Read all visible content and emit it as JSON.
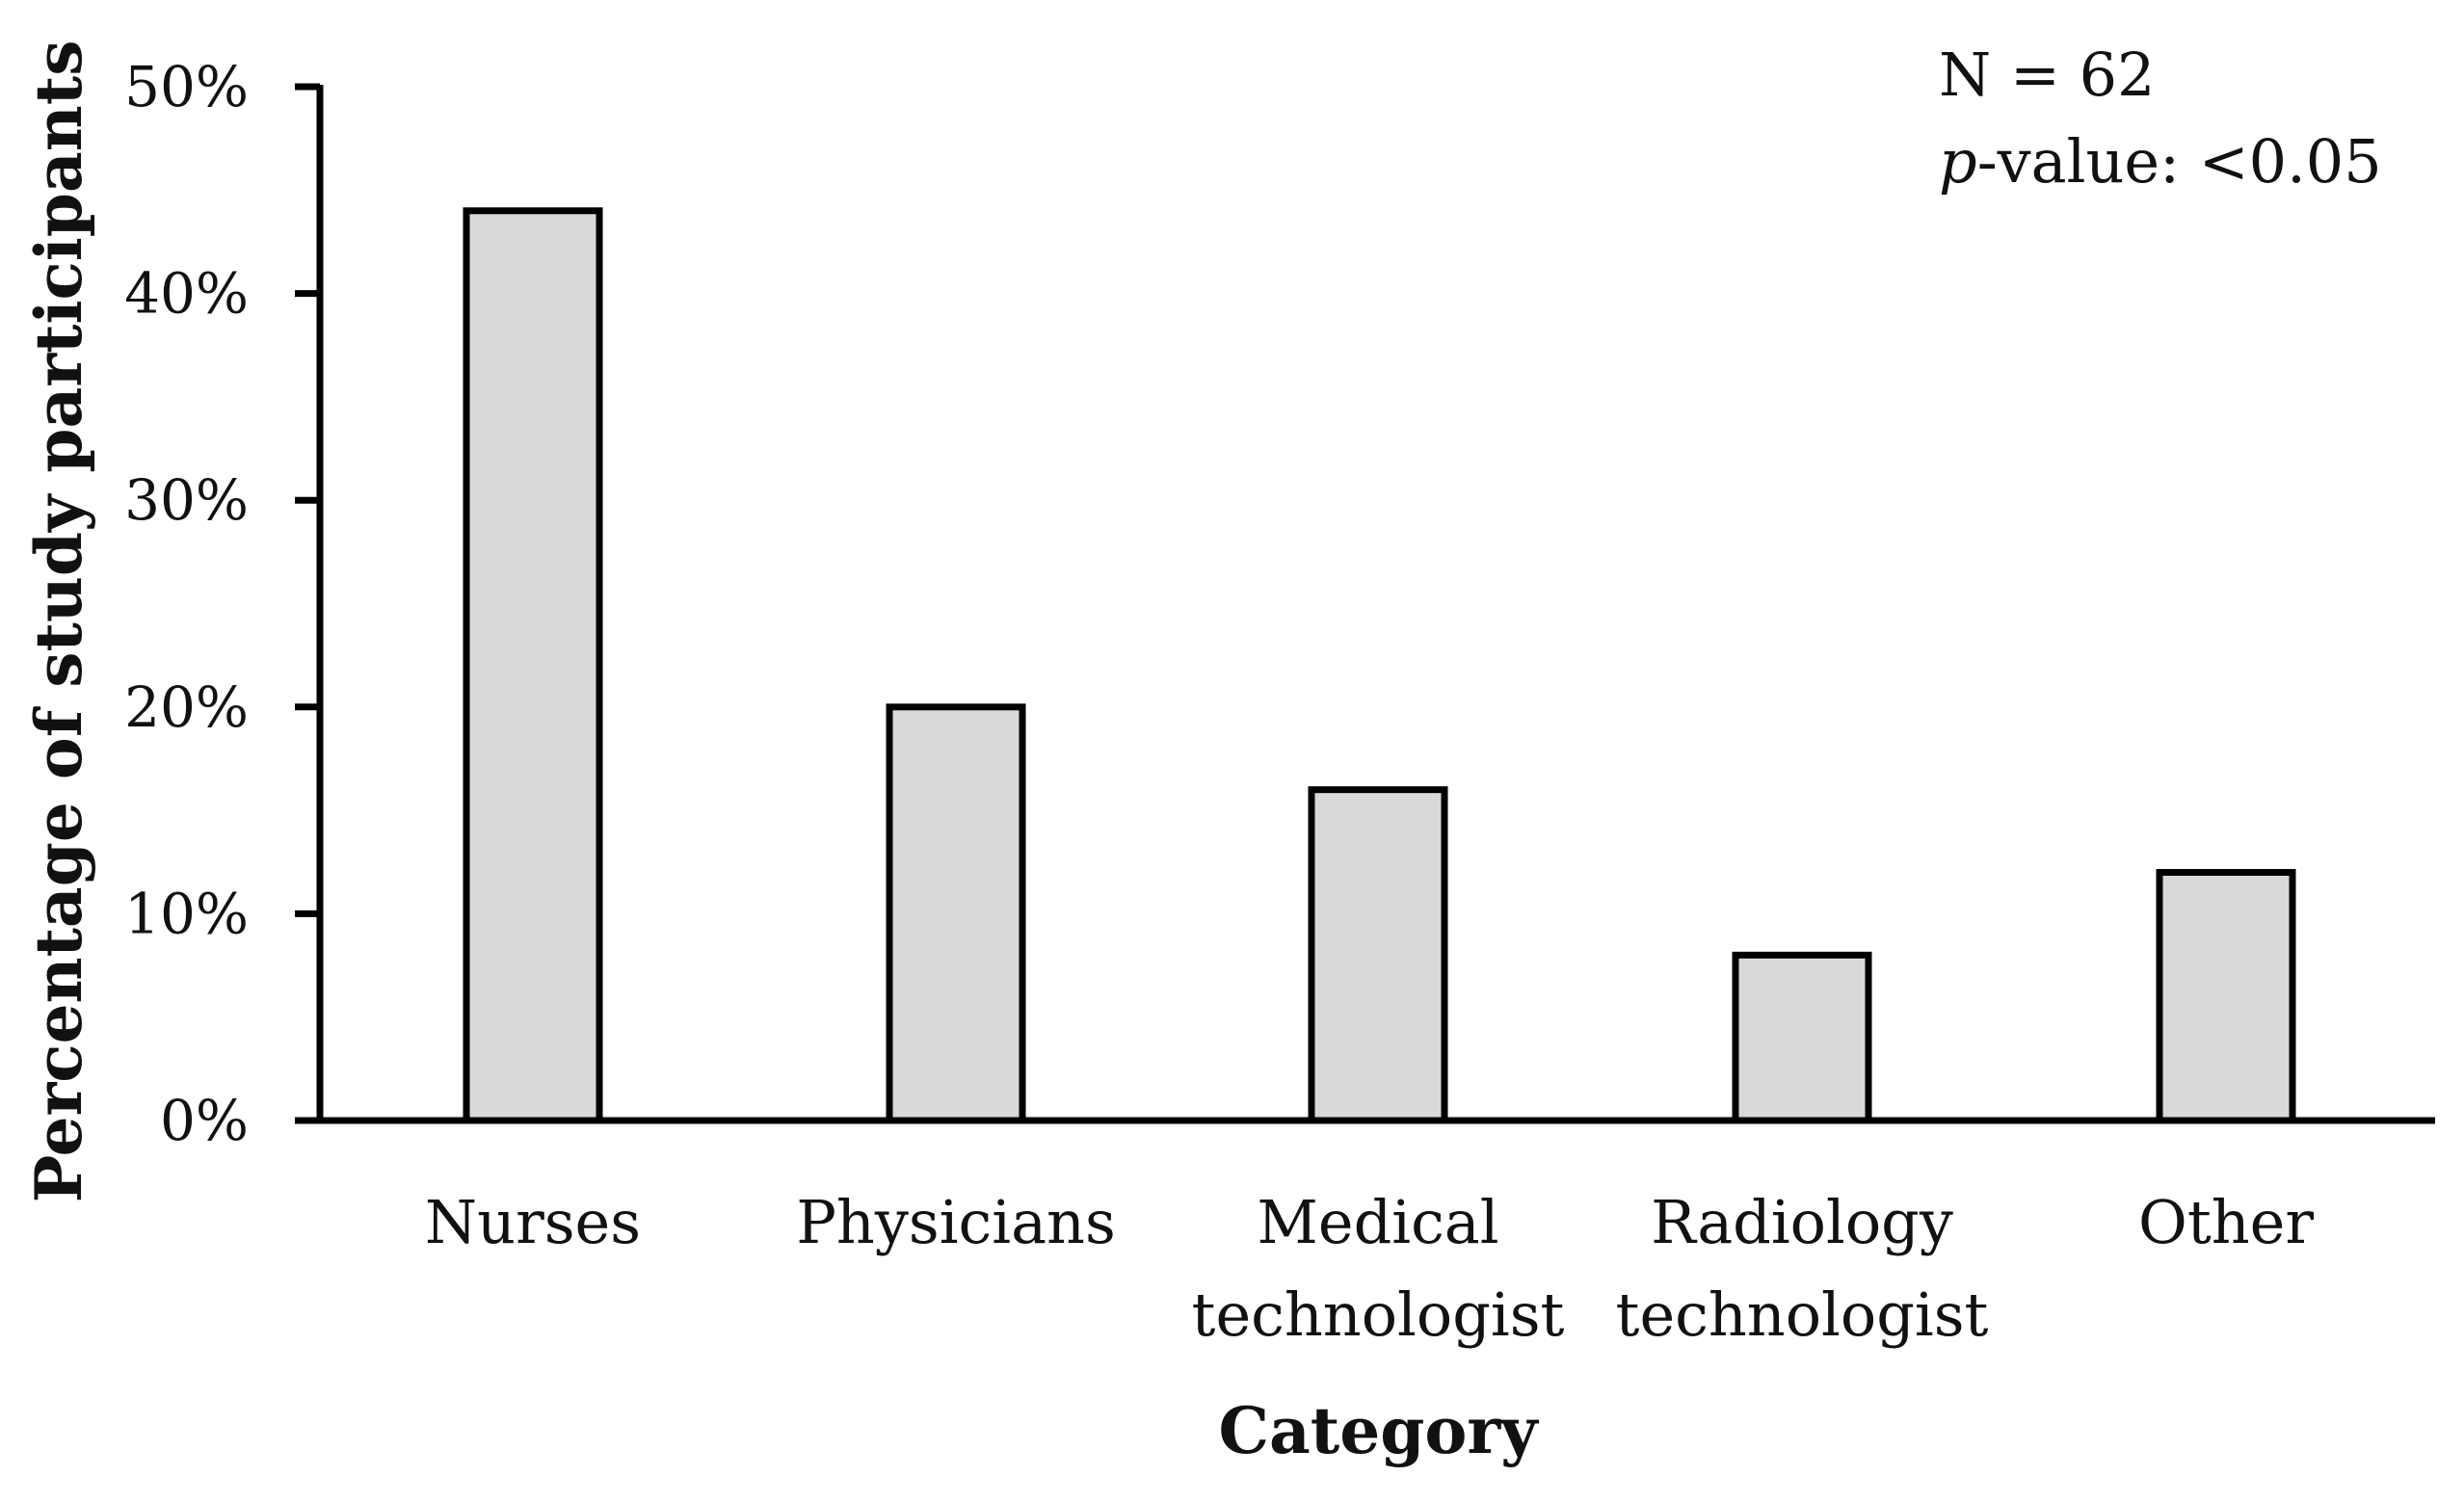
{
  "chart_data": {
    "type": "bar",
    "categories": [
      "Nurses",
      "Physicians",
      "Medical technologist",
      "Radiology technologist",
      "Other"
    ],
    "category_lines": [
      [
        "Nurses"
      ],
      [
        "Physicians"
      ],
      [
        "Medical",
        "technologist"
      ],
      [
        "Radiology",
        "technologist"
      ],
      [
        "Other"
      ]
    ],
    "values": [
      44,
      20,
      16,
      8,
      12
    ],
    "xlabel": "Category",
    "ylabel": "Percentage of study participants",
    "ylim": [
      0,
      50
    ],
    "yticks": [
      "0%",
      "10%",
      "20%",
      "30%",
      "40%",
      "50%"
    ],
    "grid": false,
    "annotations": {
      "n_text": "N = 62",
      "p_letter": "p",
      "p_rest": "-value: <0.05"
    },
    "colors": {
      "bar_fill": "#d9d9d9",
      "bar_stroke": "#000000",
      "axis": "#000000"
    }
  }
}
